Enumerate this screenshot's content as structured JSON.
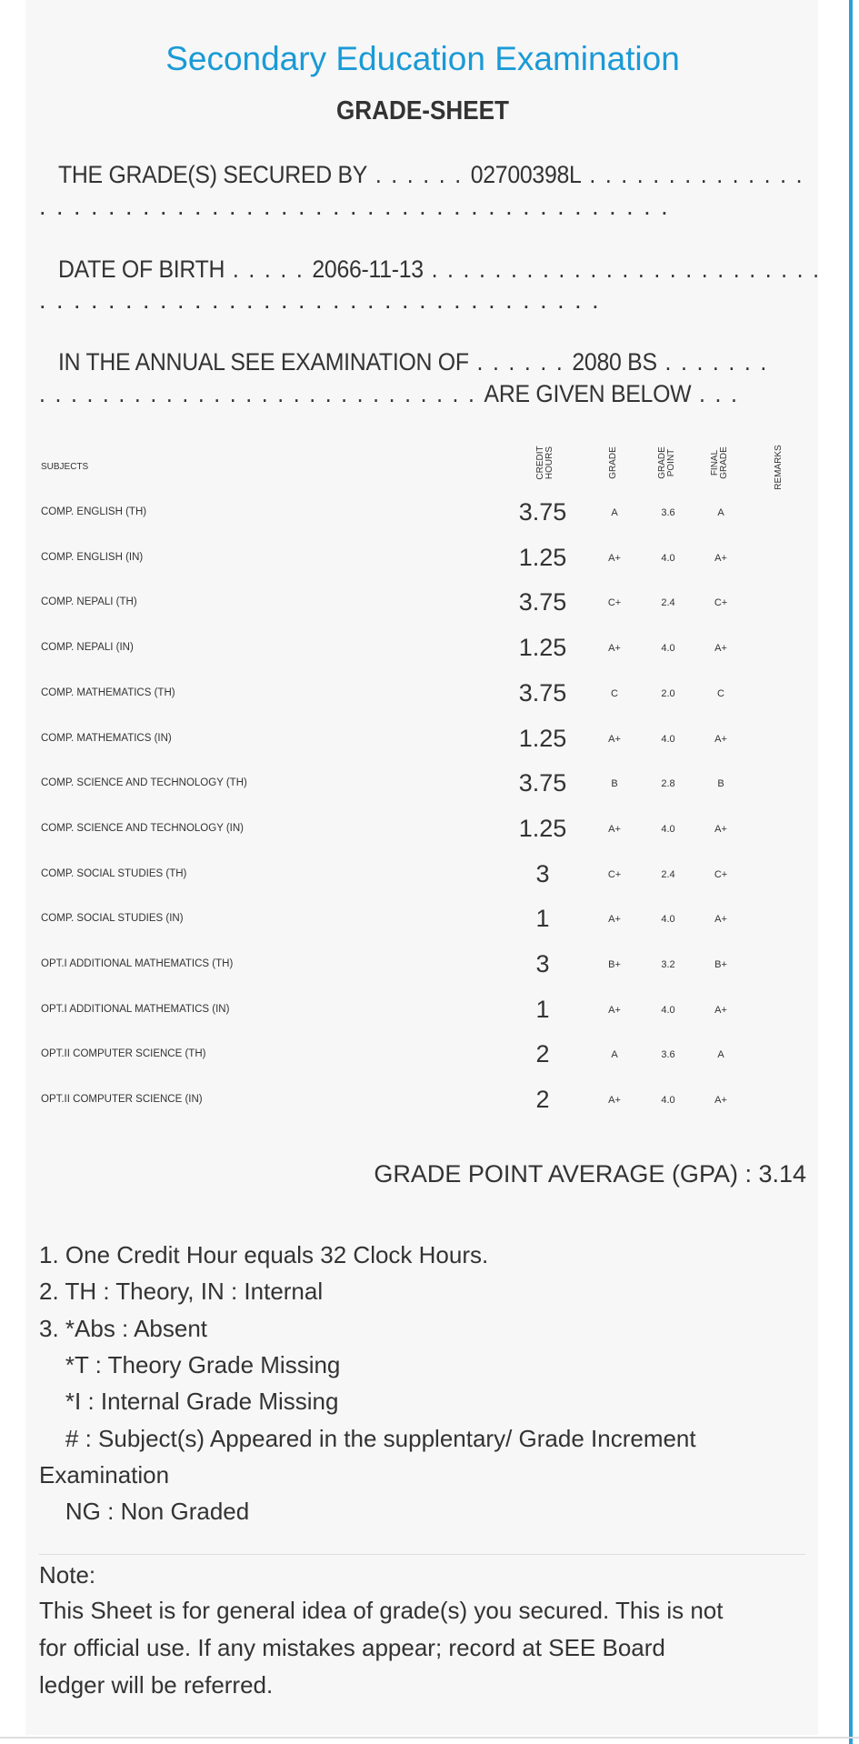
{
  "header": {
    "title": "Secondary Education Examination",
    "subtitle": "GRADE-SHEET"
  },
  "statement": {
    "secured_by_label": "THE GRADE(S) SECURED BY",
    "secured_by_value": "02700398L",
    "dob_label": "DATE OF BIRTH",
    "dob_value": "2066-11-13",
    "exam_label": "IN THE ANNUAL SEE EXAMINATION OF",
    "exam_value": "2080 BS",
    "given_below": "ARE GIVEN BELOW"
  },
  "table": {
    "headers": {
      "subjects": "SUBJECTS",
      "credit_hours_1": "CREDIT",
      "credit_hours_2": "HOURS",
      "grade": "GRADE",
      "grade_point_1": "GRADE",
      "grade_point_2": "POINT",
      "final_grade_1": "FINAL",
      "final_grade_2": "GRADE",
      "remarks": "REMARKS"
    },
    "rows": [
      {
        "subject": "COMP. ENGLISH (TH)",
        "credit": "3.75",
        "grade": "A",
        "gp": "3.6",
        "final": "A"
      },
      {
        "subject": "COMP. ENGLISH (IN)",
        "credit": "1.25",
        "grade": "A+",
        "gp": "4.0",
        "final": "A+"
      },
      {
        "subject": "COMP. NEPALI (TH)",
        "credit": "3.75",
        "grade": "C+",
        "gp": "2.4",
        "final": "C+"
      },
      {
        "subject": "COMP. NEPALI (IN)",
        "credit": "1.25",
        "grade": "A+",
        "gp": "4.0",
        "final": "A+"
      },
      {
        "subject": "COMP. MATHEMATICS (TH)",
        "credit": "3.75",
        "grade": "C",
        "gp": "2.0",
        "final": "C"
      },
      {
        "subject": "COMP. MATHEMATICS (IN)",
        "credit": "1.25",
        "grade": "A+",
        "gp": "4.0",
        "final": "A+"
      },
      {
        "subject": "COMP. SCIENCE AND TECHNOLOGY (TH)",
        "credit": "3.75",
        "grade": "B",
        "gp": "2.8",
        "final": "B"
      },
      {
        "subject": "COMP. SCIENCE AND TECHNOLOGY (IN)",
        "credit": "1.25",
        "grade": "A+",
        "gp": "4.0",
        "final": "A+"
      },
      {
        "subject": "COMP. SOCIAL STUDIES (TH)",
        "credit": "3",
        "grade": "C+",
        "gp": "2.4",
        "final": "C+"
      },
      {
        "subject": "COMP. SOCIAL STUDIES (IN)",
        "credit": "1",
        "grade": "A+",
        "gp": "4.0",
        "final": "A+"
      },
      {
        "subject": "OPT.I ADDITIONAL MATHEMATICS (TH)",
        "credit": "3",
        "grade": "B+",
        "gp": "3.2",
        "final": "B+"
      },
      {
        "subject": "OPT.I ADDITIONAL MATHEMATICS (IN)",
        "credit": "1",
        "grade": "A+",
        "gp": "4.0",
        "final": "A+"
      },
      {
        "subject": "OPT.II COMPUTER SCIENCE (TH)",
        "credit": "2",
        "grade": "A",
        "gp": "3.6",
        "final": "A"
      },
      {
        "subject": "OPT.II COMPUTER SCIENCE (IN)",
        "credit": "2",
        "grade": "A+",
        "gp": "4.0",
        "final": "A+"
      }
    ]
  },
  "gpa": "GRADE POINT AVERAGE (GPA) : 3.14",
  "footnotes": [
    "1. One Credit Hour equals 32 Clock Hours.",
    "2. TH : Theory, IN : Internal",
    "3. *Abs : Absent",
    "    *T : Theory Grade Missing",
    "    *I : Internal Grade Missing",
    "    # : Subject(s) Appeared in the supplentary/ Grade Increment",
    "Examination",
    "    NG : Non Graded"
  ],
  "note": {
    "label": "Note:",
    "lines": [
      "This Sheet is for general idea of grade(s) you secured. This is not",
      "for official use. If any mistakes appear; record at SEE Board",
      "ledger will be referred."
    ]
  }
}
